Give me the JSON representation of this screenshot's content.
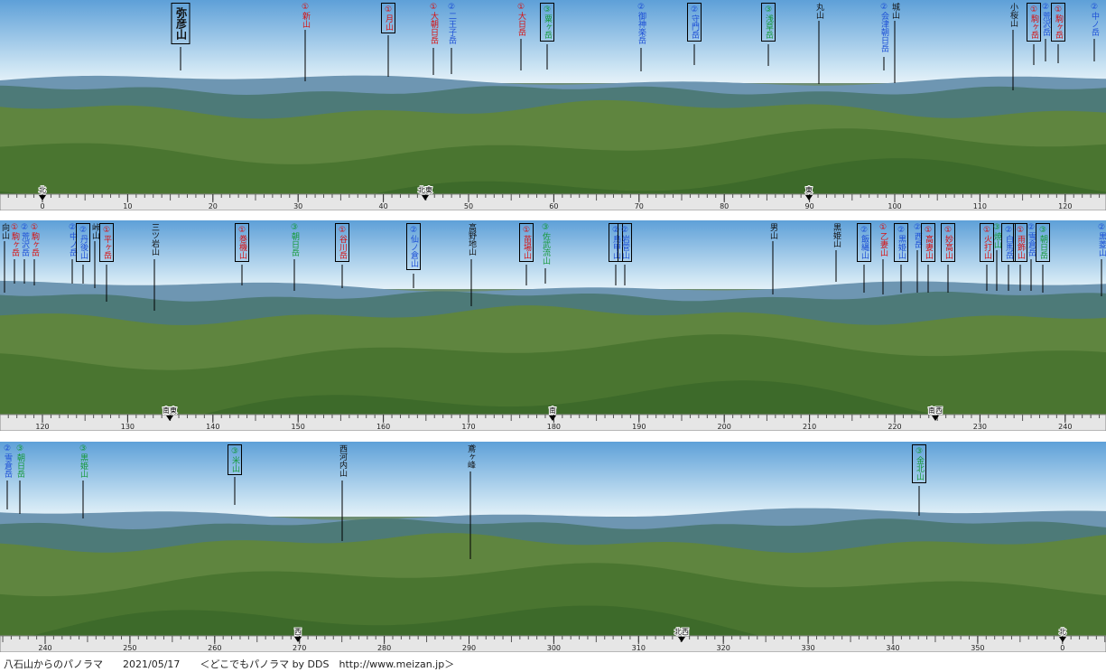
{
  "panels": [
    {
      "labels": [
        {
          "text": "弥彦山",
          "color": "black",
          "boxed": true
        },
        {
          "text": "①新山",
          "color": "red",
          "boxed": false
        },
        {
          "text": "①月山",
          "color": "red",
          "boxed": true
        },
        {
          "text": "①大朝日岳",
          "color": "red",
          "boxed": false
        },
        {
          "text": "②二王子岳",
          "color": "blue",
          "boxed": false
        },
        {
          "text": "①大日岳",
          "color": "red",
          "boxed": false
        },
        {
          "text": "③粟ヶ岳",
          "color": "green",
          "boxed": true
        },
        {
          "text": "②御神楽岳",
          "color": "blue",
          "boxed": false
        },
        {
          "text": "②守門岳",
          "color": "blue",
          "boxed": true
        },
        {
          "text": "③浅草岳",
          "color": "green",
          "boxed": true
        },
        {
          "text": "丸山",
          "color": "black",
          "boxed": false
        },
        {
          "text": "②会津朝日岳",
          "color": "blue",
          "boxed": false
        },
        {
          "text": "城山",
          "color": "black",
          "boxed": false
        },
        {
          "text": "小桜山",
          "color": "black",
          "boxed": false
        },
        {
          "text": "①駒ヶ岳",
          "color": "red",
          "boxed": true
        },
        {
          "text": "②荒沢岳",
          "color": "blue",
          "boxed": false
        },
        {
          "text": "①駒ヶ岳",
          "color": "red",
          "boxed": true
        },
        {
          "text": "②中ノ岳",
          "color": "blue",
          "boxed": false
        }
      ],
      "scale": {
        "ticks": [
          0,
          10,
          20,
          30,
          40,
          50,
          60,
          70,
          80,
          90,
          100,
          110,
          120
        ],
        "directions": [
          "北",
          "北東",
          "東"
        ]
      }
    },
    {
      "labels": [
        {
          "text": "向山",
          "color": "black",
          "boxed": false
        },
        {
          "text": "①駒ヶ岳",
          "color": "red",
          "boxed": false
        },
        {
          "text": "②荒沢岳",
          "color": "blue",
          "boxed": false
        },
        {
          "text": "①駒ヶ岳",
          "color": "red",
          "boxed": false
        },
        {
          "text": "②中ノ岳",
          "color": "blue",
          "boxed": false
        },
        {
          "text": "②丹後山",
          "color": "blue",
          "boxed": true
        },
        {
          "text": "峠山",
          "color": "black",
          "boxed": false
        },
        {
          "text": "①平ヶ岳",
          "color": "red",
          "boxed": true
        },
        {
          "text": "三ツ岩山",
          "color": "black",
          "boxed": false
        },
        {
          "text": "①巻機山",
          "color": "red",
          "boxed": true
        },
        {
          "text": "③朝日岳",
          "color": "green",
          "boxed": false
        },
        {
          "text": "①谷川岳",
          "color": "red",
          "boxed": true
        },
        {
          "text": "②仙ノ倉山",
          "color": "blue",
          "boxed": true
        },
        {
          "text": "高野地山",
          "color": "black",
          "boxed": false
        },
        {
          "text": "①苗場山",
          "color": "red",
          "boxed": true
        },
        {
          "text": "③佐武流山",
          "color": "green",
          "boxed": false
        },
        {
          "text": "②鳥甲山",
          "color": "blue",
          "boxed": true
        },
        {
          "text": "②岩菅山",
          "color": "blue",
          "boxed": true
        },
        {
          "text": "男山",
          "color": "black",
          "boxed": false
        },
        {
          "text": "黒姫山",
          "color": "black",
          "boxed": false
        },
        {
          "text": "②飯縄山",
          "color": "blue",
          "boxed": true
        },
        {
          "text": "①乙妻山",
          "color": "red",
          "boxed": false
        },
        {
          "text": "②黒姫山",
          "color": "blue",
          "boxed": true
        },
        {
          "text": "②西岳",
          "color": "blue",
          "boxed": false
        },
        {
          "text": "①高妻山",
          "color": "red",
          "boxed": true
        },
        {
          "text": "①妙高山",
          "color": "red",
          "boxed": true
        },
        {
          "text": "①火打山",
          "color": "red",
          "boxed": true
        },
        {
          "text": "③焼山",
          "color": "green",
          "boxed": false
        },
        {
          "text": "②白馬岳",
          "color": "blue",
          "boxed": true
        },
        {
          "text": "①雨飾山",
          "color": "red",
          "boxed": true
        },
        {
          "text": "②雪倉岳",
          "color": "blue",
          "boxed": false
        },
        {
          "text": "③朝日岳",
          "color": "green",
          "boxed": true
        },
        {
          "text": "②黒菱山",
          "color": "blue",
          "boxed": false
        }
      ],
      "scale": {
        "ticks": [
          120,
          130,
          140,
          150,
          160,
          170,
          180,
          190,
          200,
          210,
          220,
          230,
          240
        ],
        "directions": [
          "南東",
          "南",
          "南西"
        ]
      }
    },
    {
      "labels": [
        {
          "text": "②雪倉岳",
          "color": "blue",
          "boxed": false
        },
        {
          "text": "③朝日岳",
          "color": "green",
          "boxed": false
        },
        {
          "text": "③黒姫山",
          "color": "green",
          "boxed": false
        },
        {
          "text": "③米山",
          "color": "green",
          "boxed": true
        },
        {
          "text": "西河内山",
          "color": "black",
          "boxed": false
        },
        {
          "text": "鳶ヶ峰",
          "color": "black",
          "boxed": false
        },
        {
          "text": "③金北山",
          "color": "green",
          "boxed": true
        }
      ],
      "scale": {
        "ticks": [
          240,
          250,
          260,
          270,
          280,
          290,
          300,
          310,
          320,
          330,
          340,
          350,
          0
        ],
        "directions": [
          "西",
          "北西",
          "北"
        ]
      }
    }
  ],
  "footer": {
    "title": "八石山からのパノラマ",
    "date": "2021/05/17",
    "credit": "＜どこでもパノラマ by DDS　http://www.meizan.jp＞"
  }
}
